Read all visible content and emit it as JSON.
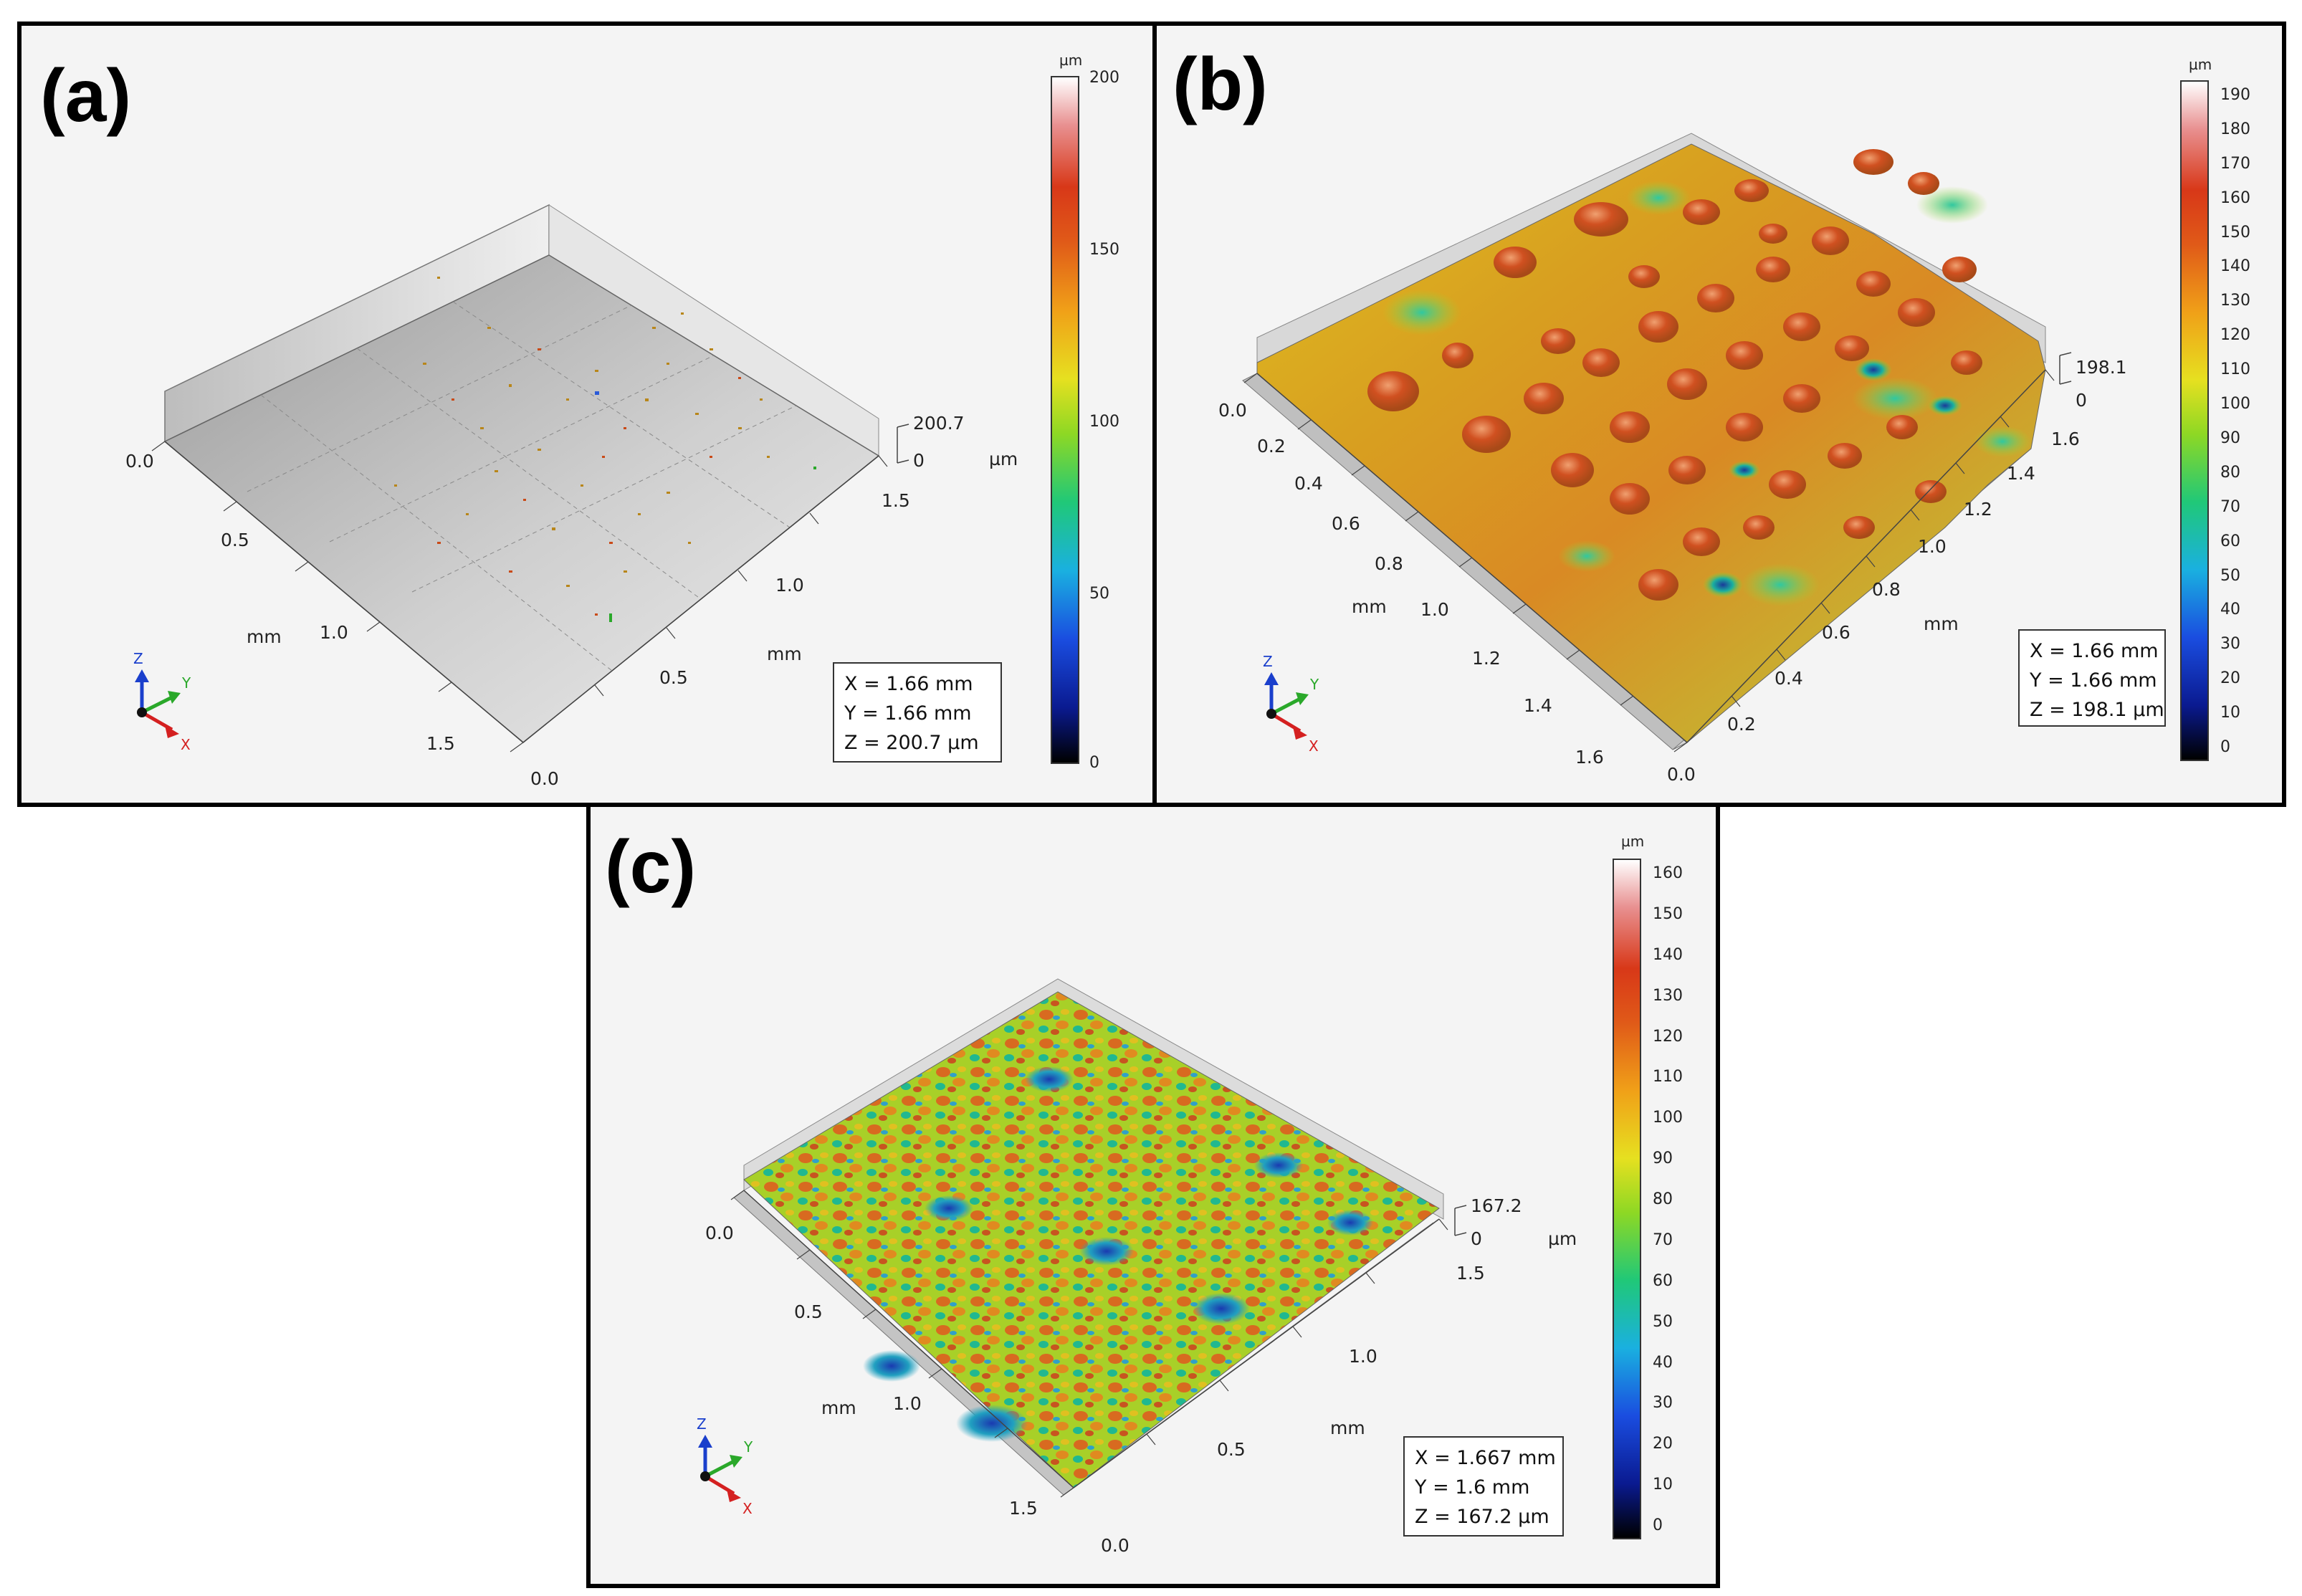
{
  "figure": {
    "panels": [
      {
        "id": "a",
        "label": "(a)",
        "x_axis_unit": "mm",
        "y_axis_unit": "mm",
        "z_unit": "µm",
        "left_axis_ticks": [
          "0.0",
          "0.5",
          "1.0",
          "1.5"
        ],
        "right_axis_ticks": [
          "0.0",
          "0.5",
          "1.0",
          "1.5"
        ],
        "z_ticks": [
          "200.7",
          "0"
        ],
        "colorbar_unit": "µm",
        "colorbar_ticks": [
          "200",
          "150",
          "100",
          "50",
          "0"
        ],
        "info": {
          "x": "X = 1.66 mm",
          "y": "Y = 1.66 mm",
          "z": "Z = 200.7 µm"
        }
      },
      {
        "id": "b",
        "label": "(b)",
        "x_axis_unit": "mm",
        "y_axis_unit": "mm",
        "left_axis_ticks": [
          "0.0",
          "0.2",
          "0.4",
          "0.6",
          "0.8",
          "1.0",
          "1.2",
          "1.4",
          "1.6"
        ],
        "right_axis_ticks": [
          "0.0",
          "0.2",
          "0.4",
          "0.6",
          "0.8",
          "1.0",
          "1.2",
          "1.4",
          "1.6"
        ],
        "z_ticks": [
          "198.1",
          "0"
        ],
        "colorbar_unit": "µm",
        "colorbar_ticks": [
          "190",
          "180",
          "170",
          "160",
          "150",
          "140",
          "130",
          "120",
          "110",
          "100",
          "90",
          "80",
          "70",
          "60",
          "50",
          "40",
          "30",
          "20",
          "10",
          "0"
        ],
        "info": {
          "x": "X = 1.66 mm",
          "y": "Y = 1.66 mm",
          "z": "Z = 198.1 µm"
        }
      },
      {
        "id": "c",
        "label": "(c)",
        "x_axis_unit": "mm",
        "y_axis_unit": "mm",
        "z_unit": "µm",
        "left_axis_ticks": [
          "0.0",
          "0.5",
          "1.0",
          "1.5"
        ],
        "right_axis_ticks": [
          "0.0",
          "0.5",
          "1.0",
          "1.5"
        ],
        "z_ticks": [
          "167.2",
          "0"
        ],
        "colorbar_unit": "µm",
        "colorbar_ticks": [
          "160",
          "150",
          "140",
          "130",
          "120",
          "110",
          "100",
          "90",
          "80",
          "70",
          "60",
          "50",
          "40",
          "30",
          "20",
          "10",
          "0"
        ],
        "info": {
          "x": "X = 1.667 mm",
          "y": "Y = 1.6 mm",
          "z": "Z = 167.2 µm"
        }
      }
    ],
    "triad": {
      "z": "Z",
      "y": "Y",
      "x": "X"
    },
    "colors": {
      "triad_z": "#1a3fcc",
      "triad_y": "#2aa82a",
      "triad_x": "#d42020"
    }
  }
}
